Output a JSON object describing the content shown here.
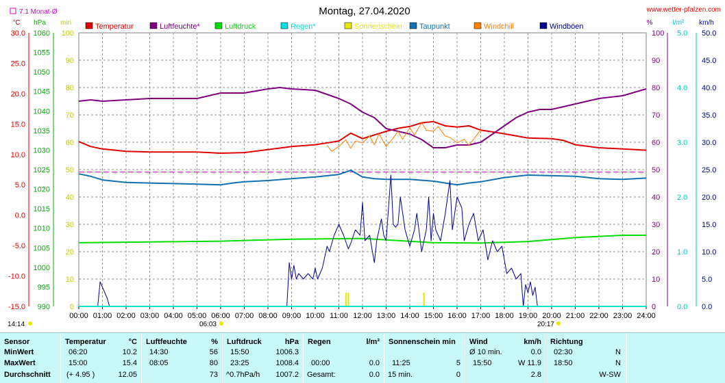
{
  "header": {
    "title": "Montag, 27.04.2020",
    "site": "www.wetter-pfalzen.com",
    "monthly_avg": "7.1 Monat-Ø"
  },
  "units": {
    "temp": "°C",
    "pressure": "hPa",
    "sun": "min",
    "humidity": "%",
    "rain": "l/m²",
    "wind": "km/h"
  },
  "sun_times": {
    "rise": "06:03",
    "set": "20:17"
  },
  "current_time": "14:14",
  "colors": {
    "temperature": "#e00000",
    "humidity": "#800080",
    "pressure": "#00dd00",
    "rain": "#00e0e0",
    "sunshine": "#e8e800",
    "dewpoint": "#1070b0",
    "windchill": "#ff7f00",
    "gusts": "#000090",
    "grid": "#909090",
    "avgline": "#d000d0"
  },
  "chart_data": {
    "type": "line",
    "title": "Montag, 27.04.2020",
    "x_ticks": [
      "00:00",
      "01:00",
      "02:00",
      "03:00",
      "04:00",
      "05:00",
      "06:00",
      "07:00",
      "08:00",
      "09:00",
      "10:00",
      "11:00",
      "12:00",
      "13:00",
      "14:00",
      "15:00",
      "16:00",
      "17:00",
      "18:00",
      "19:00",
      "20:00",
      "21:00",
      "22:00",
      "23:00",
      "24:00"
    ],
    "axes": {
      "temp": {
        "label": "°C",
        "min": -15,
        "max": 30,
        "ticks": [
          "-15.0",
          "-10.0",
          "-5.0",
          "0.0",
          "5.0",
          "10.0",
          "15.0",
          "20.0",
          "25.0",
          "30.0"
        ]
      },
      "pressure": {
        "label": "hPa",
        "min": 990,
        "max": 1060,
        "ticks": [
          "990",
          "995",
          "1000",
          "1005",
          "1010",
          "1015",
          "1020",
          "1025",
          "1030",
          "1035",
          "1040",
          "1045",
          "1050",
          "1055",
          "1060"
        ]
      },
      "sun": {
        "label": "min",
        "min": 0,
        "max": 100,
        "ticks": [
          "0",
          "10",
          "20",
          "30",
          "40",
          "50",
          "60",
          "70",
          "80",
          "90",
          "100"
        ]
      },
      "humidity": {
        "label": "%",
        "min": 0,
        "max": 100,
        "ticks": [
          "0",
          "10",
          "20",
          "30",
          "40",
          "50",
          "60",
          "70",
          "80",
          "90",
          "100"
        ]
      },
      "rain": {
        "label": "l/m²",
        "min": 0,
        "max": 5,
        "ticks": [
          "0.0",
          "1.0",
          "2.0",
          "3.0",
          "4.0",
          "5.0"
        ]
      },
      "wind": {
        "label": "km/h",
        "min": 0,
        "max": 50,
        "ticks": [
          "0.0",
          "5.0",
          "10.0",
          "15.0",
          "20.0",
          "25.0",
          "30.0",
          "35.0",
          "40.0",
          "45.0",
          "50.0"
        ]
      }
    },
    "monthly_avg_temp": 7.1,
    "legend": [
      {
        "name": "Temperatur",
        "key": "temperature"
      },
      {
        "name": "Luftfeuchte*",
        "key": "humidity"
      },
      {
        "name": "Luftdruck",
        "key": "pressure"
      },
      {
        "name": "Regen*",
        "key": "rain"
      },
      {
        "name": "Sonnenschein",
        "key": "sunshine"
      },
      {
        "name": "Taupunkt",
        "key": "dewpoint"
      },
      {
        "name": "Windchill",
        "key": "windchill"
      },
      {
        "name": "Windböen",
        "key": "gusts"
      }
    ],
    "series": [
      {
        "name": "Temperatur",
        "key": "temperature",
        "axis": "temp",
        "points": [
          [
            0,
            12.1
          ],
          [
            0.5,
            11.3
          ],
          [
            1,
            10.9
          ],
          [
            2,
            10.5
          ],
          [
            3,
            10.4
          ],
          [
            4,
            10.4
          ],
          [
            5,
            10.4
          ],
          [
            6,
            10.2
          ],
          [
            7,
            10.3
          ],
          [
            8,
            10.8
          ],
          [
            9,
            11.3
          ],
          [
            10,
            11.6
          ],
          [
            11,
            12.2
          ],
          [
            11.5,
            13.5
          ],
          [
            12,
            12.6
          ],
          [
            12.5,
            13.2
          ],
          [
            13,
            13.8
          ],
          [
            13.5,
            14.3
          ],
          [
            14,
            14.6
          ],
          [
            14.5,
            15.2
          ],
          [
            15,
            15.4
          ],
          [
            15.5,
            14.7
          ],
          [
            16,
            14.5
          ],
          [
            16.5,
            14.7
          ],
          [
            17,
            14.0
          ],
          [
            17.5,
            13.7
          ],
          [
            18,
            13.4
          ],
          [
            19,
            12.7
          ],
          [
            20,
            12.6
          ],
          [
            20.5,
            12.3
          ],
          [
            21,
            11.6
          ],
          [
            22,
            11.1
          ],
          [
            23,
            10.9
          ],
          [
            24,
            10.7
          ]
        ]
      },
      {
        "name": "Luftfeuchte*",
        "key": "humidity",
        "axis": "humidity",
        "points": [
          [
            0,
            75
          ],
          [
            0.5,
            75.5
          ],
          [
            1,
            75
          ],
          [
            2,
            75.5
          ],
          [
            3,
            76
          ],
          [
            4,
            76
          ],
          [
            5,
            76
          ],
          [
            5.5,
            77
          ],
          [
            6,
            78
          ],
          [
            7,
            78
          ],
          [
            8,
            79.5
          ],
          [
            8.5,
            80
          ],
          [
            9,
            79.5
          ],
          [
            10,
            79
          ],
          [
            11,
            76
          ],
          [
            11.5,
            74
          ],
          [
            12,
            71
          ],
          [
            12.5,
            69
          ],
          [
            13,
            65
          ],
          [
            13.5,
            64
          ],
          [
            14,
            63
          ],
          [
            14.5,
            61
          ],
          [
            15,
            58
          ],
          [
            15.5,
            58
          ],
          [
            16,
            59
          ],
          [
            16.5,
            59
          ],
          [
            17,
            60
          ],
          [
            17.5,
            63
          ],
          [
            18,
            66
          ],
          [
            18.5,
            69
          ],
          [
            19,
            71
          ],
          [
            19.5,
            72
          ],
          [
            20,
            72
          ],
          [
            21,
            74
          ],
          [
            22,
            76
          ],
          [
            23,
            77
          ],
          [
            24,
            79.5
          ]
        ]
      },
      {
        "name": "Luftdruck",
        "key": "pressure",
        "axis": "pressure",
        "points": [
          [
            0,
            1006.3
          ],
          [
            3,
            1006.5
          ],
          [
            6,
            1006.7
          ],
          [
            9,
            1007.2
          ],
          [
            12,
            1007.4
          ],
          [
            15,
            1006.3
          ],
          [
            17,
            1006.2
          ],
          [
            19,
            1006.6
          ],
          [
            21,
            1007.6
          ],
          [
            23,
            1008.2
          ],
          [
            24,
            1008.2
          ]
        ]
      },
      {
        "name": "Taupunkt",
        "key": "dewpoint",
        "axis": "temp",
        "points": [
          [
            0,
            6.8
          ],
          [
            0.5,
            6.4
          ],
          [
            1,
            5.8
          ],
          [
            2,
            5.4
          ],
          [
            3,
            5.3
          ],
          [
            4,
            5.2
          ],
          [
            5,
            5.1
          ],
          [
            6,
            5.0
          ],
          [
            6.5,
            5.3
          ],
          [
            7,
            5.5
          ],
          [
            8,
            5.7
          ],
          [
            9,
            6.0
          ],
          [
            10,
            6.3
          ],
          [
            11,
            6.7
          ],
          [
            11.5,
            7.4
          ],
          [
            12,
            6.3
          ],
          [
            12.5,
            6.0
          ],
          [
            13,
            5.9
          ],
          [
            14,
            5.9
          ],
          [
            15,
            5.6
          ],
          [
            16,
            5.0
          ],
          [
            16.5,
            5.3
          ],
          [
            17,
            5.5
          ],
          [
            18,
            6.2
          ],
          [
            19,
            6.6
          ],
          [
            20,
            6.5
          ],
          [
            21,
            6.4
          ],
          [
            22,
            6.0
          ],
          [
            23,
            5.9
          ],
          [
            24,
            6.1
          ]
        ]
      },
      {
        "name": "Windchill",
        "key": "windchill",
        "axis": "temp",
        "points": [
          [
            10.5,
            11.5
          ],
          [
            10.7,
            10.5
          ],
          [
            11,
            11.3
          ],
          [
            11.3,
            12.4
          ],
          [
            11.5,
            11.0
          ],
          [
            11.7,
            12.2
          ],
          [
            12,
            11.9
          ],
          [
            12.3,
            13.0
          ],
          [
            12.5,
            11.6
          ],
          [
            12.7,
            13.4
          ],
          [
            13,
            11.3
          ],
          [
            13.3,
            12.7
          ],
          [
            13.5,
            13.8
          ],
          [
            13.7,
            12.5
          ],
          [
            14,
            14.4
          ],
          [
            14.2,
            13.2
          ],
          [
            14.5,
            15.2
          ],
          [
            14.7,
            14.0
          ],
          [
            15,
            13.8
          ],
          [
            15.2,
            14.6
          ],
          [
            15.5,
            13.0
          ],
          [
            15.7,
            12.8
          ],
          [
            16,
            11.9
          ],
          [
            16.3,
            12.5
          ],
          [
            16.5,
            11.5
          ],
          [
            16.8,
            13.0
          ],
          [
            17,
            14.0
          ]
        ]
      },
      {
        "name": "Windböen",
        "key": "gusts",
        "axis": "wind",
        "points": [
          [
            0.8,
            0
          ],
          [
            0.9,
            4.5
          ],
          [
            1.0,
            3.5
          ],
          [
            1.2,
            1.5
          ],
          [
            1.3,
            0
          ],
          [
            8.8,
            0
          ],
          [
            8.9,
            8
          ],
          [
            9.0,
            5
          ],
          [
            9.1,
            7.5
          ],
          [
            9.2,
            5
          ],
          [
            9.3,
            6
          ],
          [
            9.5,
            5
          ],
          [
            9.7,
            6
          ],
          [
            9.9,
            5
          ],
          [
            10.0,
            7
          ],
          [
            10.1,
            5
          ],
          [
            10.3,
            7
          ],
          [
            10.5,
            11
          ],
          [
            10.6,
            10
          ],
          [
            10.8,
            13
          ],
          [
            11.0,
            15
          ],
          [
            11.2,
            13
          ],
          [
            11.4,
            10.5
          ],
          [
            11.5,
            11.5
          ],
          [
            11.7,
            14
          ],
          [
            11.9,
            13
          ],
          [
            12.0,
            19
          ],
          [
            12.1,
            12
          ],
          [
            12.3,
            13
          ],
          [
            12.5,
            8
          ],
          [
            12.6,
            12
          ],
          [
            12.8,
            16
          ],
          [
            12.9,
            13
          ],
          [
            13.0,
            12
          ],
          [
            13.2,
            24
          ],
          [
            13.3,
            15
          ],
          [
            13.4,
            14.5
          ],
          [
            13.5,
            15
          ],
          [
            13.6,
            20
          ],
          [
            13.8,
            14
          ],
          [
            14.0,
            11
          ],
          [
            14.2,
            14
          ],
          [
            14.3,
            17
          ],
          [
            14.5,
            10
          ],
          [
            14.7,
            14
          ],
          [
            14.8,
            20
          ],
          [
            14.9,
            12
          ],
          [
            15.0,
            17
          ],
          [
            15.1,
            14
          ],
          [
            15.3,
            12
          ],
          [
            15.5,
            17
          ],
          [
            15.7,
            23
          ],
          [
            15.8,
            14
          ],
          [
            16.0,
            20
          ],
          [
            16.2,
            18
          ],
          [
            16.3,
            12
          ],
          [
            16.5,
            15
          ],
          [
            16.7,
            17
          ],
          [
            16.9,
            12
          ],
          [
            17.1,
            14
          ],
          [
            17.3,
            8.5
          ],
          [
            17.5,
            12
          ],
          [
            17.7,
            10
          ],
          [
            17.9,
            11
          ],
          [
            18.1,
            6
          ],
          [
            18.3,
            7
          ],
          [
            18.5,
            5
          ],
          [
            18.7,
            6
          ],
          [
            18.8,
            0
          ],
          [
            18.9,
            4
          ],
          [
            19.0,
            2.5
          ],
          [
            19.1,
            4.5
          ],
          [
            19.2,
            2
          ],
          [
            19.3,
            3.5
          ],
          [
            19.4,
            0
          ]
        ]
      },
      {
        "name": "Sonnenschein",
        "key": "sunshine",
        "axis": "sun",
        "points": [
          [
            11.3,
            5
          ],
          [
            11.4,
            5
          ],
          [
            14.6,
            5
          ]
        ]
      }
    ]
  },
  "stats": {
    "header": {
      "sensor": "Sensor",
      "temperature": "Temperatur",
      "temp_unit": "°C",
      "humidity": "Luftfeuchte",
      "hum_unit": "%",
      "pressure": "Luftdruck",
      "press_unit": "hPa",
      "rain": "Regen",
      "rain_unit": "l/m²",
      "sun": "Sonnenschein min",
      "wind": "Wind",
      "wind_unit": "km/h",
      "direction": "Richtung"
    },
    "rows": [
      {
        "label": "MinWert",
        "temp_time": "06:20",
        "temp_val": "10.2",
        "hum_time": "14:30",
        "hum_val": "56",
        "press_time": "15:50",
        "press_val": "1006.3",
        "rain_time": "",
        "rain_val": "",
        "sun_time": "",
        "sun_val": "",
        "wind_time": "Ø 10 min.",
        "wind_val": "0.0",
        "dir_time": "02:30",
        "dir_val": "N"
      },
      {
        "label": "MaxWert",
        "temp_time": "15:00",
        "temp_val": "15.4",
        "hum_time": "08:05",
        "hum_val": "80",
        "press_time": "23:25",
        "press_val": "1008.4",
        "rain_time": "00:00",
        "rain_val": "0.0",
        "sun_time": "11:25",
        "sun_val": "5",
        "wind_time": "15:50",
        "wind_val": "W 11.9",
        "dir_time": "18:50",
        "dir_val": "N"
      },
      {
        "label": "Durchschnitt",
        "temp_time": "(+ 4.95 )",
        "temp_val": "12.05",
        "hum_time": "",
        "hum_val": "73",
        "press_time": "^0.7hPa/h",
        "press_val": "1007.2",
        "rain_time": "Gesamt:",
        "rain_val": "0.0",
        "sun_time": "15 min.",
        "sun_val": "0",
        "wind_time": "",
        "wind_val": "2.8",
        "dir_time": "",
        "dir_val": "W-SW"
      }
    ]
  }
}
